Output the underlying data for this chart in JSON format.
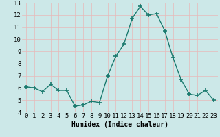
{
  "x": [
    0,
    1,
    2,
    3,
    4,
    5,
    6,
    7,
    8,
    9,
    10,
    11,
    12,
    13,
    14,
    15,
    16,
    17,
    18,
    19,
    20,
    21,
    22,
    23
  ],
  "y": [
    6.1,
    6.0,
    5.7,
    6.3,
    5.8,
    5.8,
    4.5,
    4.6,
    4.9,
    4.8,
    7.0,
    8.6,
    9.6,
    11.7,
    12.7,
    12.0,
    12.1,
    10.7,
    8.5,
    6.7,
    5.5,
    5.4,
    5.8,
    5.0
  ],
  "line_color": "#1a7a6e",
  "marker": "+",
  "marker_size": 4,
  "marker_lw": 1.2,
  "bg_color": "#cce8e8",
  "grid_color": "#e8b8b8",
  "xlabel": "Humidex (Indice chaleur)",
  "xlabel_fontsize": 7,
  "tick_fontsize": 6.5,
  "xlim": [
    -0.5,
    23.5
  ],
  "ylim": [
    4,
    13
  ],
  "yticks": [
    4,
    5,
    6,
    7,
    8,
    9,
    10,
    11,
    12,
    13
  ],
  "xticks": [
    0,
    1,
    2,
    3,
    4,
    5,
    6,
    7,
    8,
    9,
    10,
    11,
    12,
    13,
    14,
    15,
    16,
    17,
    18,
    19,
    20,
    21,
    22,
    23
  ]
}
